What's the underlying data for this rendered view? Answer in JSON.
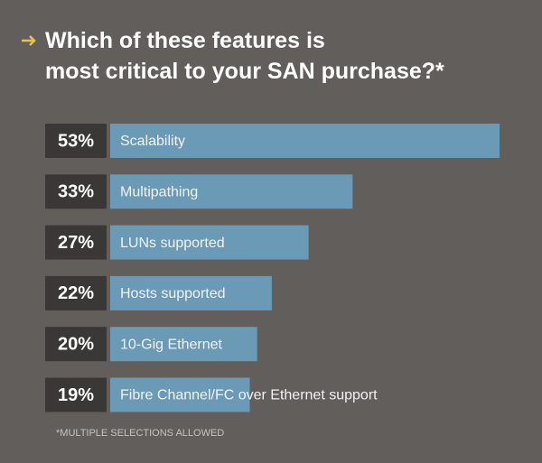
{
  "chart_data": {
    "type": "bar",
    "orientation": "horizontal",
    "title": "Which of these features is most critical to your SAN purchase?*",
    "categories": [
      "Scalability",
      "Multipathing",
      "LUNs supported",
      "Hosts supported",
      "10-Gig Ethernet",
      "Fibre Channel/FC over Ethernet support"
    ],
    "values": [
      53,
      33,
      27,
      22,
      20,
      19
    ],
    "value_labels": [
      "53%",
      "33%",
      "27%",
      "22%",
      "20%",
      "19%"
    ],
    "color": "#6a9ab6",
    "note": "*MULTIPLE SELECTIONS ALLOWED"
  }
}
